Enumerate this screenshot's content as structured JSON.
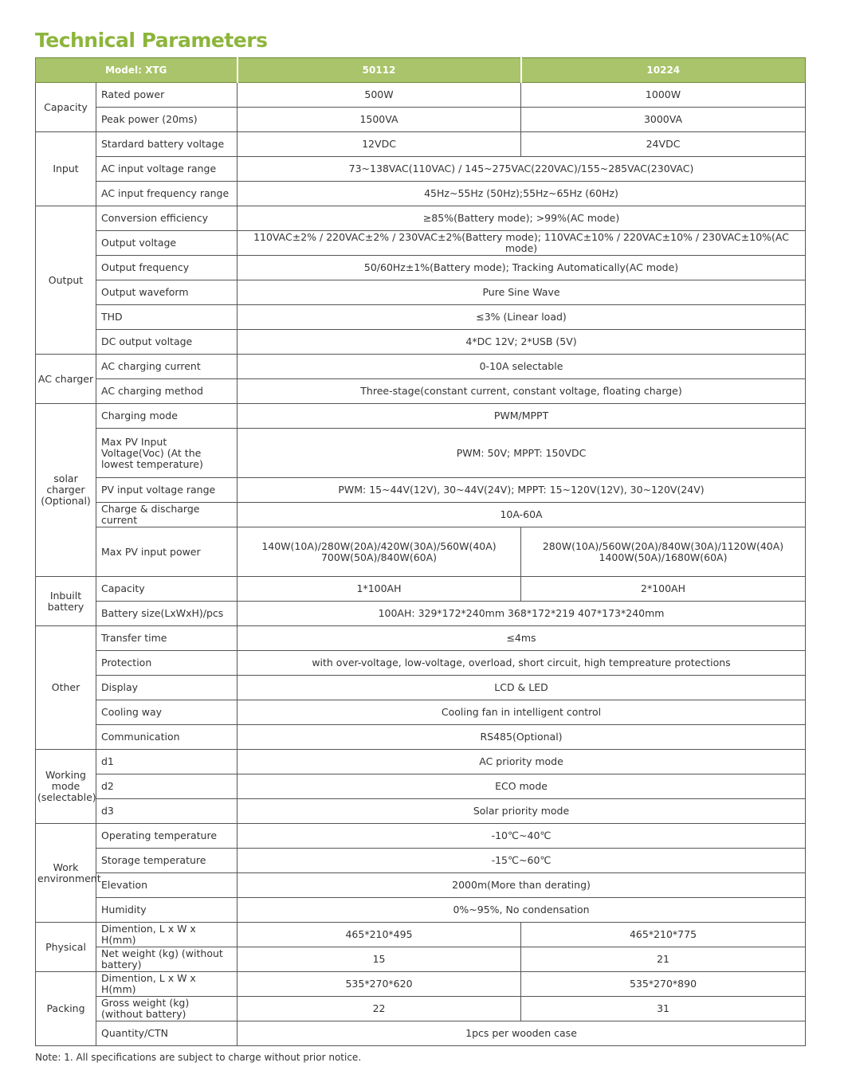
{
  "title": "Technical Parameters",
  "header": {
    "model_label": "Model: XTG",
    "models": [
      "50112",
      "10224"
    ]
  },
  "colors": {
    "accent": "#8db53c",
    "header_bg": "#a9c46a"
  },
  "groups": [
    {
      "name": "Capacity",
      "rows": [
        {
          "label": "Rated power",
          "values": [
            "500W",
            "1000W"
          ]
        },
        {
          "label": "Peak power  (20ms)",
          "values": [
            "1500VA",
            "3000VA"
          ]
        }
      ]
    },
    {
      "name": "Input",
      "rows": [
        {
          "label": "Stardard battery voltage",
          "values": [
            "12VDC",
            "24VDC"
          ]
        },
        {
          "label": "AC input voltage range",
          "values": [
            "73~138VAC(110VAC) / 145~275VAC(220VAC)/155~285VAC(230VAC)"
          ]
        },
        {
          "label": "AC input frequency range",
          "values": [
            "45Hz~55Hz  (50Hz);55Hz~65Hz  (60Hz)"
          ]
        }
      ]
    },
    {
      "name": "Output",
      "rows": [
        {
          "label": "Conversion efficiency",
          "values": [
            "≥85%(Battery mode); >99%(AC mode)"
          ]
        },
        {
          "label": "Output voltage",
          "values": [
            "110VAC±2% / 220VAC±2% / 230VAC±2%(Battery mode); 110VAC±10% / 220VAC±10% / 230VAC±10%(AC mode)"
          ]
        },
        {
          "label": "Output frequency",
          "values": [
            "50/60Hz±1%(Battery mode); Tracking Automatically(AC mode)"
          ]
        },
        {
          "label": "Output waveform",
          "values": [
            "Pure Sine Wave"
          ]
        },
        {
          "label": "THD",
          "values": [
            "≤3%  (Linear load)"
          ]
        },
        {
          "label": "DC output voltage",
          "values": [
            "4*DC 12V; 2*USB  (5V)"
          ]
        }
      ]
    },
    {
      "name": "AC charger",
      "rows": [
        {
          "label": "AC charging current",
          "values": [
            "0-10A selectable"
          ]
        },
        {
          "label": "AC charging method",
          "values": [
            "Three-stage(constant current, constant voltage, floating charge)"
          ]
        }
      ]
    },
    {
      "name": "solar charger (Optional)",
      "rows": [
        {
          "label": "Charging mode",
          "values": [
            "PWM/MPPT"
          ]
        },
        {
          "label": "Max PV Input Voltage(Voc) (At the lowest temperature)",
          "values": [
            "PWM: 50V; MPPT: 150VDC"
          ],
          "tall": true
        },
        {
          "label": "PV input voltage range",
          "values": [
            "PWM: 15~44V(12V), 30~44V(24V); MPPT: 15~120V(12V), 30~120V(24V)"
          ]
        },
        {
          "label": "Charge & discharge current",
          "values": [
            "10A-60A"
          ]
        },
        {
          "label": "Max PV input power",
          "values": [
            "140W(10A)/280W(20A)/420W(30A)/560W(40A) 700W(50A)/840W(60A)",
            "280W(10A)/560W(20A)/840W(30A)/1120W(40A) 1400W(50A)/1680W(60A)"
          ],
          "tall": true
        }
      ]
    },
    {
      "name": "Inbuilt battery",
      "rows": [
        {
          "label": "Capacity",
          "values": [
            "1*100AH",
            "2*100AH"
          ]
        },
        {
          "label": "Battery size(LxWxH)/pcs",
          "values": [
            "100AH: 329*172*240mm      368*172*219      407*173*240mm"
          ]
        }
      ]
    },
    {
      "name": "Other",
      "rows": [
        {
          "label": "Transfer time",
          "values": [
            "≤4ms"
          ]
        },
        {
          "label": "Protection",
          "values": [
            "with over-voltage, low-voltage, overload, short circuit, high tempreature protections"
          ]
        },
        {
          "label": "Display",
          "values": [
            "LCD & LED"
          ]
        },
        {
          "label": "Cooling way",
          "values": [
            "Cooling fan in intelligent control"
          ]
        },
        {
          "label": "Communication",
          "values": [
            "RS485(Optional)"
          ]
        }
      ]
    },
    {
      "name": "Working mode (selectable)",
      "rows": [
        {
          "label": "d1",
          "values": [
            "AC priority mode"
          ]
        },
        {
          "label": "d2",
          "values": [
            "ECO mode"
          ]
        },
        {
          "label": "d3",
          "values": [
            "Solar priority mode"
          ]
        }
      ]
    },
    {
      "name": "Work environment",
      "rows": [
        {
          "label": "Operating temperature",
          "values": [
            "-10℃~40℃"
          ]
        },
        {
          "label": "Storage temperature",
          "values": [
            "-15℃~60℃"
          ]
        },
        {
          "label": "Elevation",
          "values": [
            "2000m(More than derating)"
          ]
        },
        {
          "label": "Humidity",
          "values": [
            "0%~95%, No condensation"
          ]
        }
      ]
    },
    {
      "name": "Physical",
      "rows": [
        {
          "label": "Dimention, L x W x H(mm)",
          "values": [
            "465*210*495",
            "465*210*775"
          ]
        },
        {
          "label": "Net weight (kg) (without battery)",
          "values": [
            "15",
            "21"
          ]
        }
      ]
    },
    {
      "name": "Packing",
      "rows": [
        {
          "label": "Dimention, L x W x H(mm)",
          "values": [
            "535*270*620",
            "535*270*890"
          ]
        },
        {
          "label": "Gross weight (kg) (without battery)",
          "values": [
            "22",
            "31"
          ]
        },
        {
          "label": "Quantity/CTN",
          "values": [
            "1pcs per wooden case"
          ]
        }
      ]
    }
  ],
  "note": "Note:  1. All specifications are subject to charge without prior notice."
}
